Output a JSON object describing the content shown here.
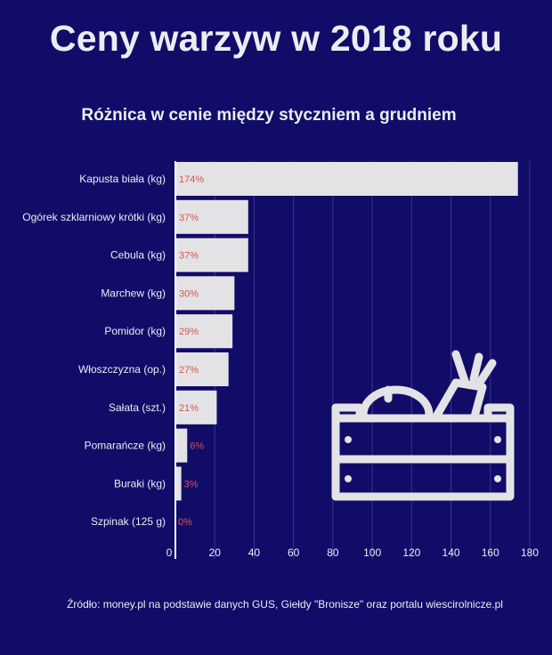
{
  "header": {
    "title": "Ceny warzyw w 2018 roku",
    "subtitle": "Różnica w cenie między styczniem a grudniem"
  },
  "footer": {
    "source": "Źródło: money.pl na podstawie danych GUS, Giełdy \"Bronisze\" oraz portalu wiescirolnicze.pl"
  },
  "decoration": {
    "icon": "vegetable-crate-icon"
  },
  "colors": {
    "background": "#120c69",
    "bar": "#e3e3e5",
    "value_label": "#d9534f",
    "text": "#ececf2",
    "grid": "#3a3490"
  },
  "chart_data": {
    "type": "bar",
    "orientation": "horizontal",
    "title": "Różnica w cenie między styczniem a grudniem",
    "categories": [
      "Kapusta biała (kg)",
      "Ogórek szklarniowy krótki (kg)",
      "Cebula (kg)",
      "Marchew (kg)",
      "Pomidor (kg)",
      "Włoszczyzna (op.)",
      "Sałata (szt.)",
      "Pomarańcze (kg)",
      "Buraki (kg)",
      "Szpinak (125 g)"
    ],
    "values": [
      174,
      37,
      37,
      30,
      29,
      27,
      21,
      6,
      3,
      0
    ],
    "value_labels": [
      "174%",
      "37%",
      "37%",
      "30%",
      "29%",
      "27%",
      "21%",
      "6%",
      "3%",
      "0%"
    ],
    "xlim": [
      0,
      180
    ],
    "xticks": [
      "0",
      "20",
      "40",
      "60",
      "80",
      "100",
      "120",
      "140",
      "160",
      "180"
    ],
    "grid": true
  }
}
